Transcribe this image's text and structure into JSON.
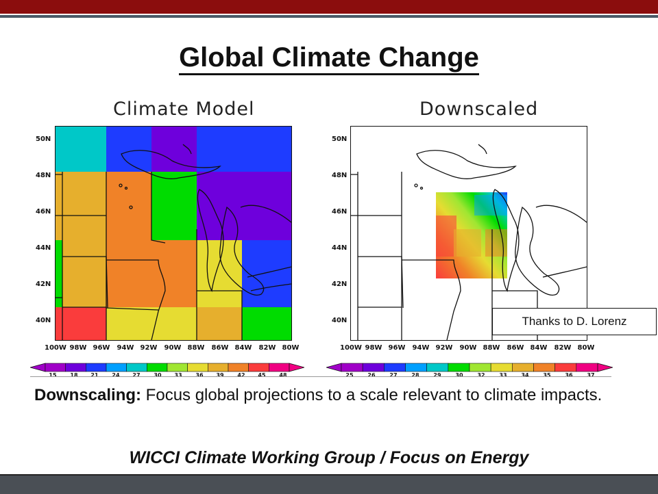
{
  "slide": {
    "title": "Global Climate Change",
    "credit": "Thanks to D. Lorenz",
    "body_bold": "Downscaling:",
    "body_text": " Focus global projections to a scale relevant to climate impacts.",
    "footer": "WICCI Climate Working Group / Focus on Energy"
  },
  "maps": {
    "left_title": "Climate Model",
    "right_title": "Downscaled",
    "lat_labels": [
      "50N",
      "48N",
      "46N",
      "44N",
      "42N",
      "40N"
    ],
    "lon_labels": [
      "100W",
      "98W",
      "96W",
      "94W",
      "92W",
      "90W",
      "88W",
      "86W",
      "84W",
      "82W",
      "80W"
    ],
    "left_colorbar": [
      "15",
      "18",
      "21",
      "24",
      "27",
      "30",
      "33",
      "36",
      "39",
      "42",
      "45",
      "48"
    ],
    "right_colorbar": [
      "25",
      "26",
      "27",
      "28",
      "29",
      "30",
      "32",
      "33",
      "34",
      "35",
      "36",
      "37"
    ],
    "colorbar_colors": [
      "#a000c8",
      "#6e00dc",
      "#1e3cff",
      "#00a0ff",
      "#00c8c8",
      "#00dc00",
      "#a0e632",
      "#e6dc32",
      "#e6af2d",
      "#f08228",
      "#fa3c3c",
      "#f00082"
    ]
  }
}
